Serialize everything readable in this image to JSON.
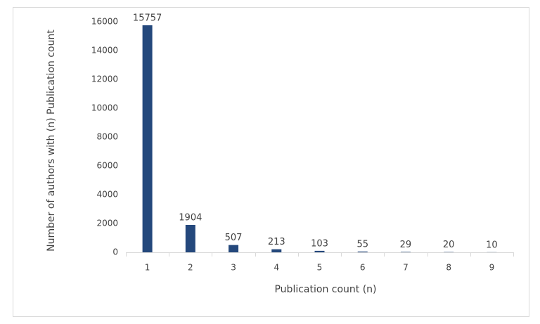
{
  "chart_data": {
    "type": "bar",
    "categories": [
      "1",
      "2",
      "3",
      "4",
      "5",
      "6",
      "7",
      "8",
      "9"
    ],
    "values": [
      15757,
      1904,
      507,
      213,
      103,
      55,
      29,
      20,
      10
    ],
    "color": "#24487c",
    "x_label": "Publication count (n)",
    "y_label": "Number  of authors with (n) Publication count",
    "ylim": [
      0,
      16000
    ],
    "yticks": [
      0,
      2000,
      4000,
      6000,
      8000,
      10000,
      12000,
      14000,
      16000
    ],
    "grid": false
  }
}
